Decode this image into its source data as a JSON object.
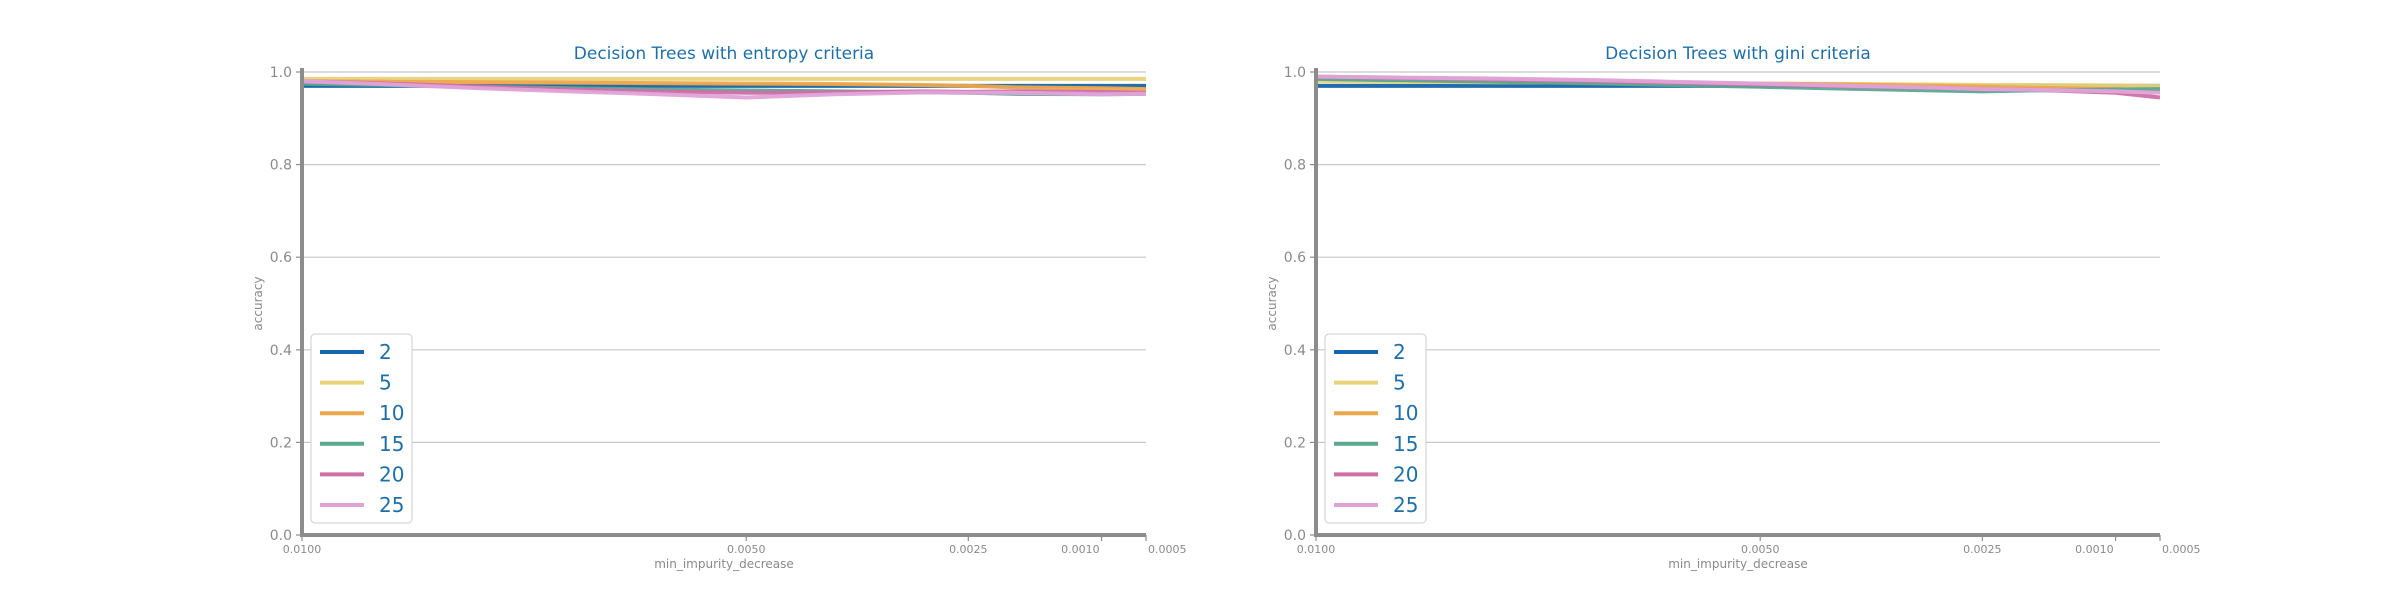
{
  "chart_data": [
    {
      "type": "line",
      "title": "Decision Trees with entropy criteria",
      "xlabel": "min_impurity_decrease",
      "ylabel": "accuracy",
      "x": [
        0.01,
        0.009,
        0.008,
        0.007,
        0.006,
        0.005,
        0.004,
        0.003,
        0.0025,
        0.002,
        0.001,
        0.0005
      ],
      "x_ticks": [
        0.01,
        0.005,
        0.0025,
        0.001,
        0.0005
      ],
      "x_tick_labels": [
        "0.0100",
        "0.0050",
        "0.0025",
        "0.0010",
        "0.0005"
      ],
      "x_reversed": true,
      "ylim": [
        0,
        1
      ],
      "y_ticks": [
        0,
        0.2,
        0.4,
        0.6,
        0.8,
        1.0
      ],
      "y_tick_labels": [
        "0.0",
        "0.2",
        "0.4",
        "0.6",
        "0.8",
        "1.0"
      ],
      "grid": "horizontal",
      "legend": "lower-left",
      "series": [
        {
          "name": "2",
          "color": "#1565a8",
          "values": [
            0.97,
            0.97,
            0.97,
            0.97,
            0.97,
            0.97,
            0.97,
            0.97,
            0.97,
            0.97,
            0.97,
            0.97
          ]
        },
        {
          "name": "5",
          "color": "#e8d27a",
          "values": [
            0.985,
            0.985,
            0.985,
            0.985,
            0.985,
            0.985,
            0.985,
            0.985,
            0.985,
            0.985,
            0.985,
            0.985
          ]
        },
        {
          "name": "10",
          "color": "#eea64a",
          "values": [
            0.98,
            0.979,
            0.978,
            0.977,
            0.976,
            0.975,
            0.974,
            0.972,
            0.97,
            0.967,
            0.965,
            0.963
          ]
        },
        {
          "name": "15",
          "color": "#5aa892",
          "values": [
            0.975,
            0.972,
            0.968,
            0.965,
            0.962,
            0.96,
            0.958,
            0.956,
            0.955,
            0.953,
            0.952,
            0.953
          ]
        },
        {
          "name": "20",
          "color": "#cf6fa8",
          "values": [
            0.98,
            0.975,
            0.968,
            0.962,
            0.958,
            0.955,
            0.956,
            0.958,
            0.957,
            0.958,
            0.957,
            0.955
          ]
        },
        {
          "name": "25",
          "color": "#e0a3d8",
          "values": [
            0.98,
            0.973,
            0.965,
            0.958,
            0.952,
            0.945,
            0.952,
            0.956,
            0.955,
            0.955,
            0.952,
            0.953
          ]
        }
      ]
    },
    {
      "type": "line",
      "title": "Decision Trees with gini criteria",
      "xlabel": "min_impurity_decrease",
      "ylabel": "accuracy",
      "x": [
        0.01,
        0.009,
        0.008,
        0.007,
        0.006,
        0.005,
        0.004,
        0.003,
        0.0025,
        0.002,
        0.001,
        0.0005
      ],
      "x_ticks": [
        0.01,
        0.005,
        0.0025,
        0.001,
        0.0005
      ],
      "x_tick_labels": [
        "0.0100",
        "0.0050",
        "0.0025",
        "0.0010",
        "0.0005"
      ],
      "x_reversed": true,
      "ylim": [
        0,
        1
      ],
      "y_ticks": [
        0,
        0.2,
        0.4,
        0.6,
        0.8,
        1.0
      ],
      "y_tick_labels": [
        "0.0",
        "0.2",
        "0.4",
        "0.6",
        "0.8",
        "1.0"
      ],
      "grid": "horizontal",
      "legend": "lower-left",
      "series": [
        {
          "name": "2",
          "color": "#1565a8",
          "values": [
            0.97,
            0.97,
            0.97,
            0.97,
            0.97,
            0.97,
            0.97,
            0.97,
            0.97,
            0.97,
            0.97,
            0.97
          ]
        },
        {
          "name": "5",
          "color": "#e8d27a",
          "values": [
            0.98,
            0.979,
            0.978,
            0.977,
            0.976,
            0.975,
            0.974,
            0.973,
            0.972,
            0.972,
            0.971,
            0.97
          ]
        },
        {
          "name": "10",
          "color": "#eea64a",
          "values": [
            0.985,
            0.983,
            0.981,
            0.979,
            0.977,
            0.975,
            0.973,
            0.97,
            0.968,
            0.966,
            0.963,
            0.96
          ]
        },
        {
          "name": "15",
          "color": "#5aa892",
          "values": [
            0.985,
            0.982,
            0.979,
            0.976,
            0.972,
            0.968,
            0.964,
            0.96,
            0.958,
            0.96,
            0.962,
            0.963
          ]
        },
        {
          "name": "20",
          "color": "#cf6fa8",
          "values": [
            0.99,
            0.987,
            0.984,
            0.981,
            0.977,
            0.973,
            0.969,
            0.966,
            0.963,
            0.962,
            0.955,
            0.945
          ]
        },
        {
          "name": "25",
          "color": "#e0a3d8",
          "values": [
            0.99,
            0.988,
            0.986,
            0.983,
            0.979,
            0.975,
            0.97,
            0.966,
            0.963,
            0.962,
            0.958,
            0.955
          ]
        }
      ]
    }
  ]
}
